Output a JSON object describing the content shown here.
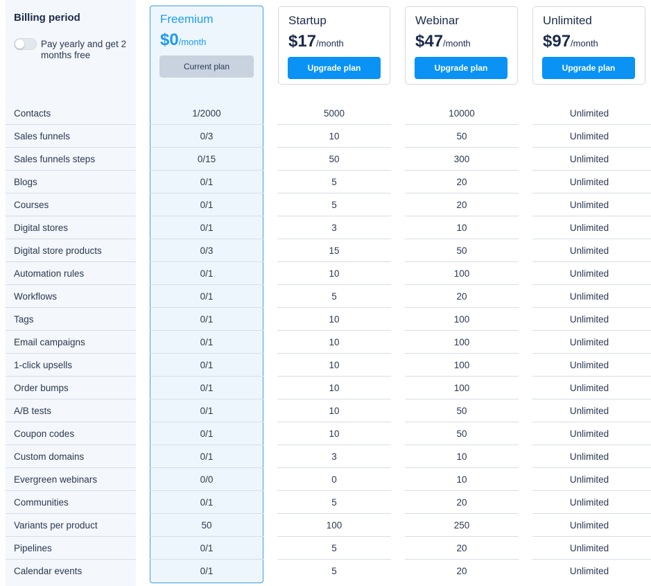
{
  "billing": {
    "title": "Billing period",
    "toggle_label": "Pay yearly and get 2 months free"
  },
  "plans": [
    {
      "name": "Freemium",
      "price": "$0",
      "per": "/month",
      "button": "Current plan",
      "current": true
    },
    {
      "name": "Startup",
      "price": "$17",
      "per": "/month",
      "button": "Upgrade plan",
      "current": false
    },
    {
      "name": "Webinar",
      "price": "$47",
      "per": "/month",
      "button": "Upgrade plan",
      "current": false
    },
    {
      "name": "Unlimited",
      "price": "$97",
      "per": "/month",
      "button": "Upgrade plan",
      "current": false
    }
  ],
  "features": [
    {
      "label": "Contacts",
      "values": [
        "1/2000",
        "5000",
        "10000",
        "Unlimited"
      ]
    },
    {
      "label": "Sales funnels",
      "values": [
        "0/3",
        "10",
        "50",
        "Unlimited"
      ]
    },
    {
      "label": "Sales funnels steps",
      "values": [
        "0/15",
        "50",
        "300",
        "Unlimited"
      ]
    },
    {
      "label": "Blogs",
      "values": [
        "0/1",
        "5",
        "20",
        "Unlimited"
      ]
    },
    {
      "label": "Courses",
      "values": [
        "0/1",
        "5",
        "20",
        "Unlimited"
      ]
    },
    {
      "label": "Digital stores",
      "values": [
        "0/1",
        "3",
        "10",
        "Unlimited"
      ]
    },
    {
      "label": "Digital store products",
      "values": [
        "0/3",
        "15",
        "50",
        "Unlimited"
      ]
    },
    {
      "label": "Automation rules",
      "values": [
        "0/1",
        "10",
        "100",
        "Unlimited"
      ]
    },
    {
      "label": "Workflows",
      "values": [
        "0/1",
        "5",
        "20",
        "Unlimited"
      ]
    },
    {
      "label": "Tags",
      "values": [
        "0/1",
        "10",
        "100",
        "Unlimited"
      ]
    },
    {
      "label": "Email campaigns",
      "values": [
        "0/1",
        "10",
        "100",
        "Unlimited"
      ]
    },
    {
      "label": "1-click upsells",
      "values": [
        "0/1",
        "10",
        "100",
        "Unlimited"
      ]
    },
    {
      "label": "Order bumps",
      "values": [
        "0/1",
        "10",
        "100",
        "Unlimited"
      ]
    },
    {
      "label": "A/B tests",
      "values": [
        "0/1",
        "10",
        "50",
        "Unlimited"
      ]
    },
    {
      "label": "Coupon codes",
      "values": [
        "0/1",
        "10",
        "50",
        "Unlimited"
      ]
    },
    {
      "label": "Custom domains",
      "values": [
        "0/1",
        "3",
        "10",
        "Unlimited"
      ]
    },
    {
      "label": "Evergreen webinars",
      "values": [
        "0/0",
        "0",
        "10",
        "Unlimited"
      ]
    },
    {
      "label": "Communities",
      "values": [
        "0/1",
        "5",
        "20",
        "Unlimited"
      ]
    },
    {
      "label": "Variants per product",
      "values": [
        "50",
        "100",
        "250",
        "Unlimited"
      ]
    },
    {
      "label": "Pipelines",
      "values": [
        "0/1",
        "5",
        "20",
        "Unlimited"
      ]
    },
    {
      "label": "Calendar events",
      "values": [
        "0/1",
        "5",
        "20",
        "Unlimited"
      ]
    }
  ]
}
